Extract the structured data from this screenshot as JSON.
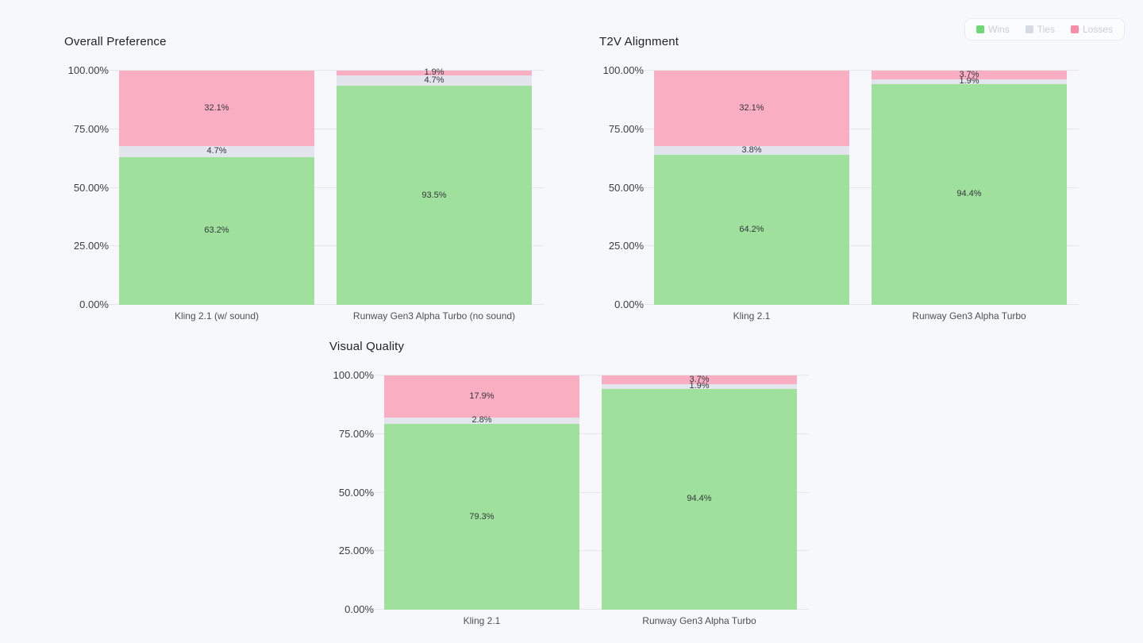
{
  "page": {
    "background": "#F7F8FC"
  },
  "legend": {
    "items": [
      {
        "label": "Wins",
        "color": "#6FD874"
      },
      {
        "label": "Ties",
        "color": "#D7DBE4"
      },
      {
        "label": "Losses",
        "color": "#F98BA6"
      }
    ]
  },
  "colors": {
    "wins": "#9FE19C",
    "ties": "#E2E5EC",
    "losses": "#FAAEC2",
    "gridline": "#E5E6EB"
  },
  "chart_data": [
    {
      "type": "bar",
      "stacked": true,
      "title": "Overall Preference",
      "categories": [
        "Kling 2.1 (w/ sound)",
        "Runway Gen3 Alpha Turbo (no sound)"
      ],
      "series": [
        {
          "name": "Wins",
          "values": [
            63.2,
            93.5
          ]
        },
        {
          "name": "Ties",
          "values": [
            4.7,
            4.7
          ]
        },
        {
          "name": "Losses",
          "values": [
            32.1,
            1.9
          ]
        }
      ],
      "y_ticks": [
        "0.00%",
        "25.00%",
        "50.00%",
        "75.00%",
        "100.00%"
      ],
      "ylim": [
        0,
        100
      ],
      "grid": true,
      "legend_position": "top-right"
    },
    {
      "type": "bar",
      "stacked": true,
      "title": "T2V Alignment",
      "categories": [
        "Kling 2.1",
        "Runway Gen3 Alpha Turbo"
      ],
      "series": [
        {
          "name": "Wins",
          "values": [
            64.2,
            94.4
          ]
        },
        {
          "name": "Ties",
          "values": [
            3.8,
            1.9
          ]
        },
        {
          "name": "Losses",
          "values": [
            32.1,
            3.7
          ]
        }
      ],
      "y_ticks": [
        "0.00%",
        "25.00%",
        "50.00%",
        "75.00%",
        "100.00%"
      ],
      "ylim": [
        0,
        100
      ],
      "grid": true,
      "legend_position": "top-right"
    },
    {
      "type": "bar",
      "stacked": true,
      "title": "Visual Quality",
      "categories": [
        "Kling 2.1",
        "Runway Gen3 Alpha Turbo"
      ],
      "series": [
        {
          "name": "Wins",
          "values": [
            79.3,
            94.4
          ]
        },
        {
          "name": "Ties",
          "values": [
            2.8,
            1.9
          ]
        },
        {
          "name": "Losses",
          "values": [
            17.9,
            3.7
          ]
        }
      ],
      "y_ticks": [
        "0.00%",
        "25.00%",
        "50.00%",
        "75.00%",
        "100.00%"
      ],
      "ylim": [
        0,
        100
      ],
      "grid": true,
      "legend_position": "top-right"
    }
  ]
}
